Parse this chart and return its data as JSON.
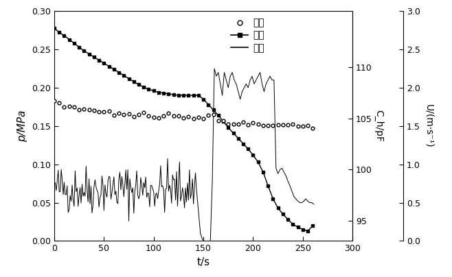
{
  "xlabel": "t/s",
  "ylabel_left": "p/MPa",
  "ylabel_right_inner": "C_h/pF",
  "ylabel_right_outer": "U/(m·s⁻¹)",
  "xlim": [
    0,
    300
  ],
  "ylim_left": [
    0,
    0.3
  ],
  "ylim_cap_pf": [
    93.0,
    115.5
  ],
  "ylim_u": [
    0,
    3.0
  ],
  "xticks": [
    0,
    50,
    100,
    150,
    200,
    250,
    300
  ],
  "yticks_left": [
    0,
    0.05,
    0.1,
    0.15,
    0.2,
    0.25,
    0.3
  ],
  "yticks_u": [
    0,
    0.5,
    1.0,
    1.5,
    2.0,
    2.5,
    3.0
  ],
  "yticks_cap": [
    95,
    100,
    105,
    110
  ],
  "legend_labels": [
    "压力",
    "电容",
    "流速"
  ],
  "pressure_points": [
    [
      0,
      0.18
    ],
    [
      5,
      0.179
    ],
    [
      10,
      0.178
    ],
    [
      15,
      0.176
    ],
    [
      20,
      0.174
    ],
    [
      25,
      0.173
    ],
    [
      30,
      0.172
    ],
    [
      35,
      0.171
    ],
    [
      40,
      0.17
    ],
    [
      45,
      0.169
    ],
    [
      50,
      0.168
    ],
    [
      55,
      0.167
    ],
    [
      60,
      0.166
    ],
    [
      65,
      0.165
    ],
    [
      70,
      0.165
    ],
    [
      75,
      0.165
    ],
    [
      80,
      0.165
    ],
    [
      85,
      0.165
    ],
    [
      90,
      0.165
    ],
    [
      95,
      0.165
    ],
    [
      100,
      0.165
    ],
    [
      105,
      0.164
    ],
    [
      110,
      0.163
    ],
    [
      115,
      0.162
    ],
    [
      120,
      0.161
    ],
    [
      125,
      0.16
    ],
    [
      130,
      0.16
    ],
    [
      135,
      0.16
    ],
    [
      140,
      0.16
    ],
    [
      145,
      0.16
    ],
    [
      150,
      0.16
    ],
    [
      155,
      0.165
    ],
    [
      160,
      0.165
    ],
    [
      165,
      0.158
    ],
    [
      170,
      0.154
    ],
    [
      175,
      0.152
    ],
    [
      180,
      0.152
    ],
    [
      185,
      0.153
    ],
    [
      190,
      0.153
    ],
    [
      195,
      0.153
    ],
    [
      200,
      0.153
    ],
    [
      205,
      0.153
    ],
    [
      210,
      0.153
    ],
    [
      215,
      0.152
    ],
    [
      220,
      0.152
    ],
    [
      225,
      0.152
    ],
    [
      230,
      0.152
    ],
    [
      235,
      0.151
    ],
    [
      240,
      0.151
    ],
    [
      245,
      0.15
    ],
    [
      250,
      0.15
    ],
    [
      255,
      0.15
    ],
    [
      260,
      0.148
    ]
  ],
  "capacitance_points": [
    [
      0,
      0.278
    ],
    [
      5,
      0.272
    ],
    [
      10,
      0.268
    ],
    [
      15,
      0.263
    ],
    [
      20,
      0.258
    ],
    [
      25,
      0.253
    ],
    [
      30,
      0.248
    ],
    [
      35,
      0.244
    ],
    [
      40,
      0.24
    ],
    [
      45,
      0.236
    ],
    [
      50,
      0.232
    ],
    [
      55,
      0.228
    ],
    [
      60,
      0.224
    ],
    [
      65,
      0.22
    ],
    [
      70,
      0.216
    ],
    [
      75,
      0.212
    ],
    [
      80,
      0.208
    ],
    [
      85,
      0.204
    ],
    [
      90,
      0.201
    ],
    [
      95,
      0.198
    ],
    [
      100,
      0.196
    ],
    [
      105,
      0.194
    ],
    [
      110,
      0.193
    ],
    [
      115,
      0.192
    ],
    [
      120,
      0.191
    ],
    [
      125,
      0.19
    ],
    [
      130,
      0.19
    ],
    [
      135,
      0.19
    ],
    [
      140,
      0.19
    ],
    [
      145,
      0.19
    ],
    [
      150,
      0.185
    ],
    [
      155,
      0.178
    ],
    [
      160,
      0.171
    ],
    [
      165,
      0.164
    ],
    [
      170,
      0.156
    ],
    [
      175,
      0.148
    ],
    [
      180,
      0.141
    ],
    [
      185,
      0.134
    ],
    [
      190,
      0.127
    ],
    [
      195,
      0.12
    ],
    [
      200,
      0.112
    ],
    [
      205,
      0.103
    ],
    [
      210,
      0.09
    ],
    [
      215,
      0.072
    ],
    [
      220,
      0.055
    ],
    [
      225,
      0.043
    ],
    [
      230,
      0.035
    ],
    [
      235,
      0.028
    ],
    [
      240,
      0.022
    ],
    [
      245,
      0.018
    ],
    [
      250,
      0.015
    ],
    [
      255,
      0.013
    ],
    [
      260,
      0.02
    ]
  ],
  "flow_noisy_t_start": 1,
  "flow_noisy_t_end": 143,
  "flow_noisy_mean": 0.068,
  "flow_noisy_amp": 0.016,
  "flow_drop_points": [
    [
      143,
      0.068
    ],
    [
      147,
      0.01
    ],
    [
      149,
      0.002
    ],
    [
      151,
      0.0
    ],
    [
      157,
      0.0
    ]
  ],
  "flow_spike_points": [
    [
      157,
      0.0
    ],
    [
      159,
      0.08
    ],
    [
      161,
      0.225
    ],
    [
      163,
      0.215
    ],
    [
      165,
      0.22
    ],
    [
      167,
      0.205
    ],
    [
      169,
      0.19
    ],
    [
      171,
      0.22
    ],
    [
      173,
      0.21
    ],
    [
      175,
      0.2
    ],
    [
      177,
      0.215
    ],
    [
      179,
      0.22
    ],
    [
      181,
      0.21
    ],
    [
      183,
      0.205
    ],
    [
      185,
      0.195
    ],
    [
      187,
      0.185
    ],
    [
      189,
      0.195
    ],
    [
      191,
      0.2
    ],
    [
      193,
      0.205
    ],
    [
      195,
      0.2
    ],
    [
      197,
      0.21
    ],
    [
      199,
      0.215
    ],
    [
      201,
      0.205
    ],
    [
      203,
      0.21
    ],
    [
      205,
      0.215
    ],
    [
      207,
      0.22
    ],
    [
      209,
      0.205
    ],
    [
      211,
      0.195
    ],
    [
      213,
      0.205
    ],
    [
      215,
      0.21
    ],
    [
      217,
      0.215
    ],
    [
      219,
      0.21
    ],
    [
      221,
      0.21
    ],
    [
      223,
      0.095
    ],
    [
      225,
      0.088
    ],
    [
      227,
      0.093
    ],
    [
      229,
      0.095
    ],
    [
      231,
      0.09
    ],
    [
      233,
      0.085
    ],
    [
      235,
      0.078
    ],
    [
      237,
      0.072
    ],
    [
      239,
      0.065
    ],
    [
      241,
      0.058
    ],
    [
      243,
      0.055
    ],
    [
      245,
      0.052
    ],
    [
      247,
      0.05
    ],
    [
      249,
      0.05
    ],
    [
      251,
      0.052
    ],
    [
      253,
      0.055
    ],
    [
      255,
      0.052
    ],
    [
      257,
      0.05
    ],
    [
      259,
      0.05
    ],
    [
      261,
      0.048
    ]
  ]
}
